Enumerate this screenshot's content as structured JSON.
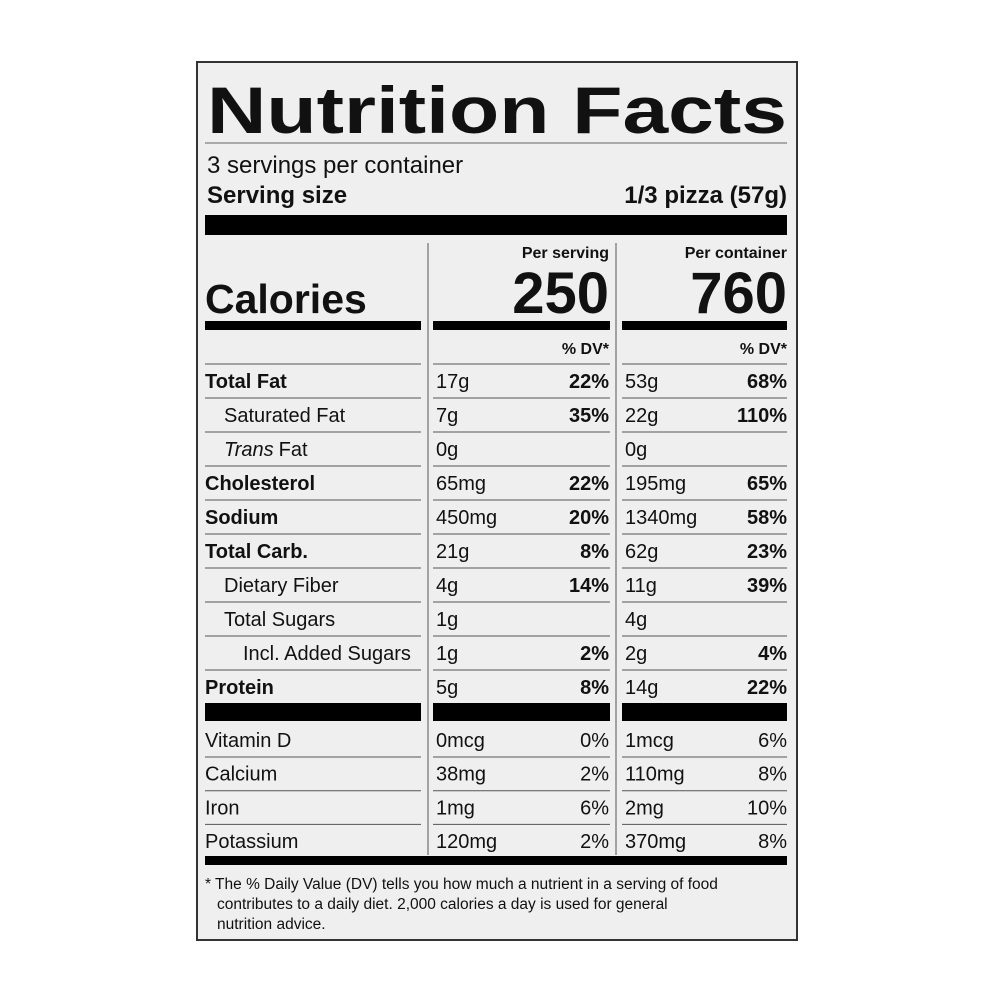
{
  "title": "Nutrition Facts",
  "servings": "3 servings per container",
  "serving_size": {
    "label": "Serving size",
    "value": "1/3 pizza (57g)"
  },
  "calories": {
    "label": "Calories",
    "per_serving_header": "Per serving",
    "per_container_header": "Per container",
    "per_serving": 250,
    "per_container": 760
  },
  "dv_header": [
    "% DV*",
    "% DV*"
  ],
  "nutrients": [
    {
      "name": "Total Fat",
      "serving_amount": "17g",
      "serving_dv": "22%",
      "container_amount": "53g",
      "container_dv": "68%",
      "sub": [
        {
          "name": "Saturated Fat",
          "serving_amount": "7g",
          "serving_dv": "35%",
          "container_amount": "22g",
          "container_dv": "110%"
        },
        {
          "name_italic": "Trans",
          "name": "Fat",
          "serving_amount": "0g",
          "container_amount": "0g"
        }
      ]
    },
    {
      "name": "Cholesterol",
      "serving_amount": "65mg",
      "serving_dv": "22%",
      "container_amount": "195mg",
      "container_dv": "65%"
    },
    {
      "name": "Sodium",
      "serving_amount": "450mg",
      "serving_dv": "20%",
      "container_amount": "1340mg",
      "container_dv": "58%"
    },
    {
      "name": "Total Carb.",
      "serving_amount": "21g",
      "serving_dv": "8%",
      "container_amount": "62g",
      "container_dv": "23%",
      "sub": [
        {
          "name": "Dietary Fiber",
          "serving_amount": "4g",
          "serving_dv": "14%",
          "container_amount": "11g",
          "container_dv": "39%"
        },
        {
          "name": "Total Sugars",
          "serving_amount": "1g",
          "container_amount": "4g",
          "sub": [
            {
              "name": "Incl. Added Sugars",
              "serving_amount": "1g",
              "serving_dv": "2%",
              "container_amount": "2g",
              "container_dv": "4%"
            }
          ]
        }
      ]
    },
    {
      "name": "Protein",
      "serving_amount": "5g",
      "serving_dv": "8%",
      "container_amount": "14g",
      "container_dv": "22%"
    }
  ],
  "vitamins": [
    {
      "name": "Vitamin D",
      "serving_amount": "0mcg",
      "serving_dv": "0%",
      "container_amount": "1mcg",
      "container_dv": "6%"
    },
    {
      "name": "Calcium",
      "serving_amount": "38mg",
      "serving_dv": "2%",
      "container_amount": "110mg",
      "container_dv": "8%"
    },
    {
      "name": "Iron",
      "serving_amount": "1mg",
      "serving_dv": "6%",
      "container_amount": "2mg",
      "container_dv": "10%"
    },
    {
      "name": "Potassium",
      "serving_amount": "120mg",
      "serving_dv": "2%",
      "container_amount": "370mg",
      "container_dv": "8%"
    }
  ],
  "footnote": [
    "* The % Daily Value (DV) tells you how much a nutrient in a serving of food",
    "contributes to a daily diet. 2,000 calories a day is used for general",
    "nutrition advice."
  ]
}
